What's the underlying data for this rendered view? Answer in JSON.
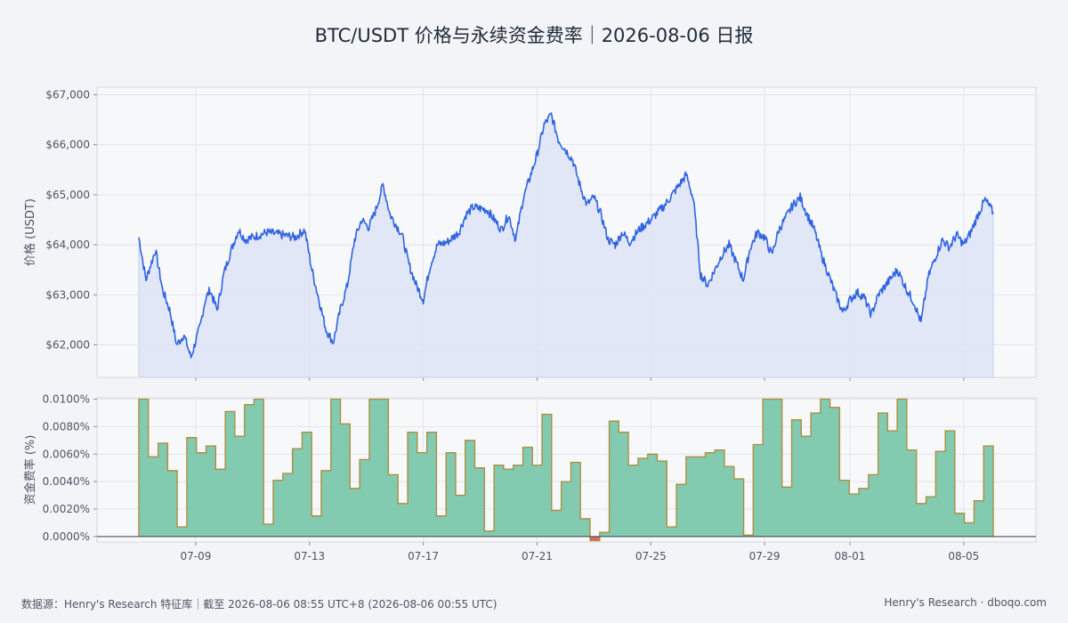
{
  "title": "BTC/USDT 价格与永续资金费率｜2026-08-06 日报",
  "footer": {
    "source": "数据源：Henry's Research 特征库｜截至 2026-08-06 08:55 UTC+8 (2026-08-06 00:55 UTC)",
    "brand": "Henry's Research · dboqo.com"
  },
  "colors": {
    "price_line": "#2f63e0",
    "price_fill": "#dde4f6",
    "funding_fill": "#82cab0",
    "funding_line": "#b08a3a",
    "negative_fill": "#d86a5c",
    "grid": "#e2e5ea",
    "plot_bg": "#f7f8fa"
  },
  "chart_data": [
    {
      "type": "line",
      "ylabel": "价格 (USDT)",
      "ylim": [
        61350,
        67150
      ],
      "yticks": [
        "$62,000",
        "$63,000",
        "$64,000",
        "$65,000",
        "$66,000",
        "$67,000"
      ],
      "ytick_values": [
        62000,
        63000,
        64000,
        65000,
        66000,
        67000
      ],
      "x_start": "2026-07-07 00:00",
      "x_end": "2026-08-06 00:55",
      "fill_below": true,
      "grid": true,
      "series": [
        {
          "x": [
            "07-07 00:00",
            "07-07 06:00",
            "07-07 14:00",
            "07-07 20:00",
            "07-08 02:00",
            "07-08 08:00",
            "07-08 14:00",
            "07-08 20:00",
            "07-09 04:00",
            "07-09 08:00",
            "07-09 12:00",
            "07-09 18:00",
            "07-10 00:00",
            "07-10 06:00",
            "07-10 12:00",
            "07-10 18:00",
            "07-11 00:00",
            "07-11 12:00",
            "07-12 00:00",
            "07-12 12:00",
            "07-12 20:00",
            "07-13 02:00",
            "07-13 08:00",
            "07-13 14:00",
            "07-13 20:00",
            "07-14 02:00",
            "07-14 08:00",
            "07-14 14:00",
            "07-14 20:00",
            "07-15 02:00",
            "07-15 08:00",
            "07-15 14:00",
            "07-15 20:00",
            "07-16 06:00",
            "07-16 12:00",
            "07-16 18:00",
            "07-17 00:00",
            "07-17 06:00",
            "07-17 12:00",
            "07-17 20:00",
            "07-18 06:00",
            "07-18 12:00",
            "07-18 18:00",
            "07-19 06:00",
            "07-19 18:00",
            "07-20 00:00",
            "07-20 06:00",
            "07-20 12:00",
            "07-20 18:00",
            "07-21 00:00",
            "07-21 06:00",
            "07-21 12:00",
            "07-21 18:00",
            "07-22 00:00",
            "07-22 06:00",
            "07-22 12:00",
            "07-22 18:00",
            "07-23 00:00",
            "07-23 06:00",
            "07-23 12:00",
            "07-23 18:00",
            "07-24 00:00",
            "07-24 06:00",
            "07-24 14:00",
            "07-25 00:00",
            "07-25 12:00",
            "07-26 00:00",
            "07-26 06:00",
            "07-26 12:00",
            "07-26 18:00",
            "07-27 00:00",
            "07-27 06:00",
            "07-27 12:00",
            "07-27 18:00",
            "07-28 00:00",
            "07-28 06:00",
            "07-28 12:00",
            "07-28 18:00",
            "07-29 00:00",
            "07-29 06:00",
            "07-29 12:00",
            "07-29 18:00",
            "07-30 00:00",
            "07-30 06:00",
            "07-30 12:00",
            "07-30 18:00",
            "07-31 00:00",
            "07-31 06:00",
            "07-31 12:00",
            "07-31 18:00",
            "08-01 00:00",
            "08-01 06:00",
            "08-01 12:00",
            "08-01 18:00",
            "08-02 00:00",
            "08-02 08:00",
            "08-02 16:00",
            "08-03 00:00",
            "08-03 06:00",
            "08-03 12:00",
            "08-03 18:00",
            "08-04 00:00",
            "08-04 06:00",
            "08-04 12:00",
            "08-04 18:00",
            "08-05 00:00",
            "08-05 06:00",
            "08-05 12:00",
            "08-05 18:00",
            "08-06 00:55"
          ],
          "values": [
            64150,
            63300,
            63900,
            63100,
            62700,
            62000,
            62200,
            61750,
            62400,
            62900,
            63100,
            62700,
            63450,
            63900,
            64300,
            64100,
            64150,
            64250,
            64200,
            64150,
            64300,
            63500,
            62900,
            62300,
            62050,
            62700,
            63200,
            64100,
            64500,
            64350,
            64700,
            65200,
            64600,
            64200,
            63600,
            63200,
            62900,
            63600,
            64000,
            64050,
            64250,
            64600,
            64750,
            64700,
            64300,
            64600,
            64100,
            64900,
            65350,
            65800,
            66400,
            66600,
            66100,
            65900,
            65700,
            65200,
            64800,
            64950,
            64600,
            64100,
            64000,
            64250,
            64050,
            64300,
            64500,
            64800,
            65200,
            65400,
            64900,
            63400,
            63200,
            63500,
            63800,
            64000,
            63650,
            63300,
            63950,
            64250,
            64150,
            63800,
            64300,
            64550,
            64800,
            64950,
            64600,
            64300,
            63800,
            63400,
            63000,
            62650,
            62900,
            63050,
            62950,
            62600,
            63000,
            63250,
            63500,
            63100,
            62850,
            62450,
            63350,
            63750,
            64100,
            63950,
            64200,
            64000,
            64250,
            64600,
            64900,
            64650
          ]
        }
      ]
    },
    {
      "type": "area",
      "step": true,
      "ylabel": "资金费率 (%)",
      "ylim": [
        -0.0004,
        0.0101
      ],
      "yticks": [
        "0.0000%",
        "0.0020%",
        "0.0040%",
        "0.0060%",
        "0.0080%",
        "0.0100%"
      ],
      "ytick_values": [
        0,
        0.002,
        0.004,
        0.006,
        0.008,
        0.01
      ],
      "xticks": [
        "07-09",
        "07-13",
        "07-17",
        "07-21",
        "07-25",
        "07-29",
        "08-01",
        "08-05"
      ],
      "x_start": "2026-07-07 00:00",
      "x_end": "2026-08-06 00:55",
      "grid": true,
      "series": [
        {
          "interval_hours": 8,
          "values": [
            0.01,
            0.0058,
            0.0068,
            0.0048,
            0.0007,
            0.0072,
            0.0061,
            0.0066,
            0.0049,
            0.0091,
            0.0073,
            0.0096,
            0.01,
            0.0009,
            0.0041,
            0.0046,
            0.0064,
            0.0076,
            0.0015,
            0.0048,
            0.01,
            0.0082,
            0.0035,
            0.0056,
            0.01,
            0.01,
            0.0045,
            0.0024,
            0.0076,
            0.0061,
            0.0076,
            0.0015,
            0.0061,
            0.003,
            0.007,
            0.005,
            0.0004,
            0.0052,
            0.0049,
            0.0052,
            0.0065,
            0.0052,
            0.0089,
            0.0019,
            0.004,
            0.0054,
            0.0013,
            -0.0003,
            0.0003,
            0.0084,
            0.0076,
            0.0052,
            0.0057,
            0.006,
            0.0055,
            0.0007,
            0.0038,
            0.0058,
            0.0058,
            0.0061,
            0.0063,
            0.0051,
            0.0042,
            0.0001,
            0.0067,
            0.01,
            0.01,
            0.0036,
            0.0085,
            0.0073,
            0.009,
            0.01,
            0.0094,
            0.0041,
            0.0031,
            0.0035,
            0.0045,
            0.009,
            0.0077,
            0.01,
            0.0063,
            0.0024,
            0.0029,
            0.0062,
            0.0077,
            0.0017,
            0.001,
            0.0026,
            0.0066
          ]
        }
      ]
    }
  ]
}
